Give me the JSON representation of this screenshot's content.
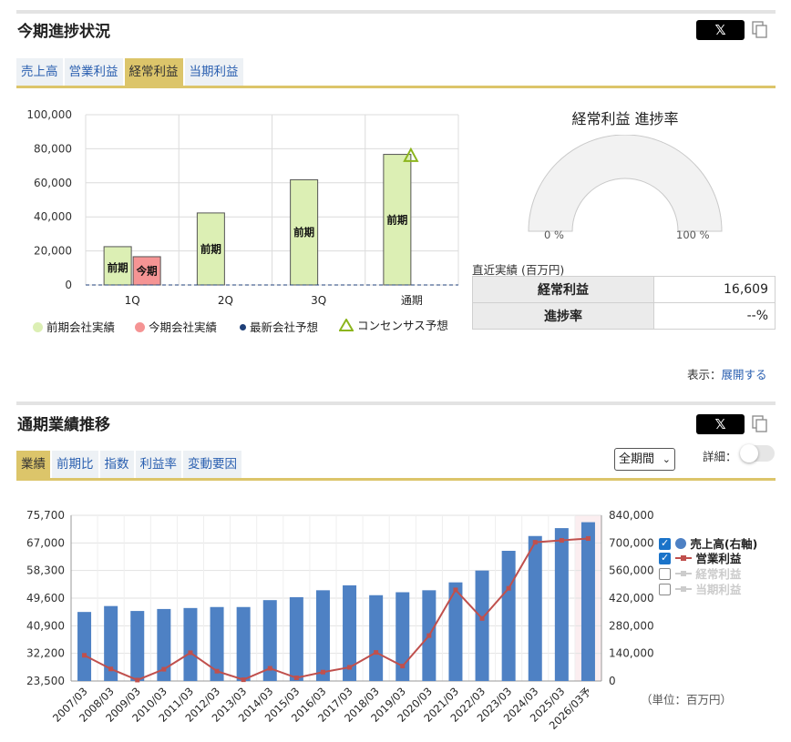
{
  "progress": {
    "title": "今期進捗状況",
    "share_label": "𝕏",
    "tabs": [
      "売上高",
      "営業利益",
      "経常利益",
      "当期利益"
    ],
    "active_tab": 2,
    "gauge": {
      "title": "経常利益 進捗率",
      "min_label": "0 %",
      "max_label": "100 %",
      "progress_percent": 0
    },
    "results": {
      "caption": "直近実績 (百万円)",
      "row1_label": "経常利益",
      "row1_value": "16,609",
      "row2_label": "進捗率",
      "row2_value": "--%"
    },
    "display": {
      "label": "表示：",
      "link": "展開する"
    },
    "legend": {
      "prev": "前期会社実績",
      "curr": "今期会社実績",
      "forecast": "最新会社予想",
      "consensus": "コンセンサス予想"
    },
    "bar_labels": {
      "prev": "前期",
      "curr": "今期"
    }
  },
  "history": {
    "title": "通期業績推移",
    "share_label": "𝕏",
    "tabs": [
      "業績",
      "前期比",
      "指数",
      "利益率",
      "変動要因"
    ],
    "active_tab": 0,
    "period_select": "全期間",
    "detail_label": "詳細：",
    "unit_label": "（単位：百万円）",
    "legend": [
      {
        "label": "売上高(右軸)",
        "checked": true
      },
      {
        "label": "営業利益",
        "checked": true
      },
      {
        "label": "経常利益",
        "checked": false
      },
      {
        "label": "当期利益",
        "checked": false
      }
    ]
  },
  "colors": {
    "accent": "#dcc56a",
    "prev_bar": "#dcefb4",
    "curr_bar": "#f59494",
    "sales_bar": "#4e81c4",
    "op_line": "#c0504d",
    "consensus": "#8cb51c",
    "forecast_dot": "#1f3f78",
    "link": "#2a5fb0"
  },
  "chart_data": [
    {
      "type": "bar",
      "categories": [
        "1Q",
        "2Q",
        "3Q",
        "通期"
      ],
      "series": [
        {
          "name": "前期会社実績",
          "values": [
            22500,
            42300,
            61800,
            76700
          ]
        },
        {
          "name": "今期会社実績",
          "values": [
            16609,
            null,
            null,
            null
          ]
        },
        {
          "name": "最新会社予想",
          "values": [
            null,
            null,
            null,
            null
          ]
        },
        {
          "name": "コンセンサス予想",
          "values": [
            null,
            null,
            null,
            75500
          ]
        }
      ],
      "ylim": [
        0,
        100000
      ],
      "yticks": [
        "100,000",
        "80,000",
        "60,000",
        "40,000",
        "20,000",
        "0"
      ]
    },
    {
      "type": "bar",
      "categories": [
        "2007/03",
        "2008/03",
        "2009/03",
        "2010/03",
        "2011/03",
        "2012/03",
        "2013/03",
        "2014/03",
        "2015/03",
        "2016/03",
        "2017/03",
        "2018/03",
        "2019/03",
        "2020/03",
        "2021/03",
        "2022/03",
        "2023/03",
        "2024/03",
        "2025/03",
        "2026/03予"
      ],
      "series": [
        {
          "name": "売上高(右軸)",
          "axis": "right",
          "values": [
            350000,
            380000,
            355000,
            365000,
            370000,
            375000,
            375000,
            410000,
            425000,
            460000,
            485000,
            435000,
            450000,
            460000,
            500000,
            560000,
            660000,
            735000,
            775000,
            805000
          ]
        },
        {
          "name": "営業利益",
          "axis": "left",
          "values": [
            31600,
            27300,
            23800,
            27200,
            32400,
            26600,
            23900,
            27500,
            24500,
            26300,
            27800,
            32500,
            28200,
            37800,
            52200,
            43200,
            52700,
            67200,
            67800,
            68400
          ]
        }
      ],
      "left_axis": {
        "ylim": [
          23500,
          75700
        ],
        "ticks": [
          "75,700",
          "67,000",
          "58,300",
          "49,600",
          "40,900",
          "32,200",
          "23,500"
        ]
      },
      "right_axis": {
        "ylim": [
          0,
          840000
        ],
        "ticks": [
          "840,000",
          "700,000",
          "560,000",
          "420,000",
          "280,000",
          "140,000",
          "0"
        ]
      }
    }
  ]
}
